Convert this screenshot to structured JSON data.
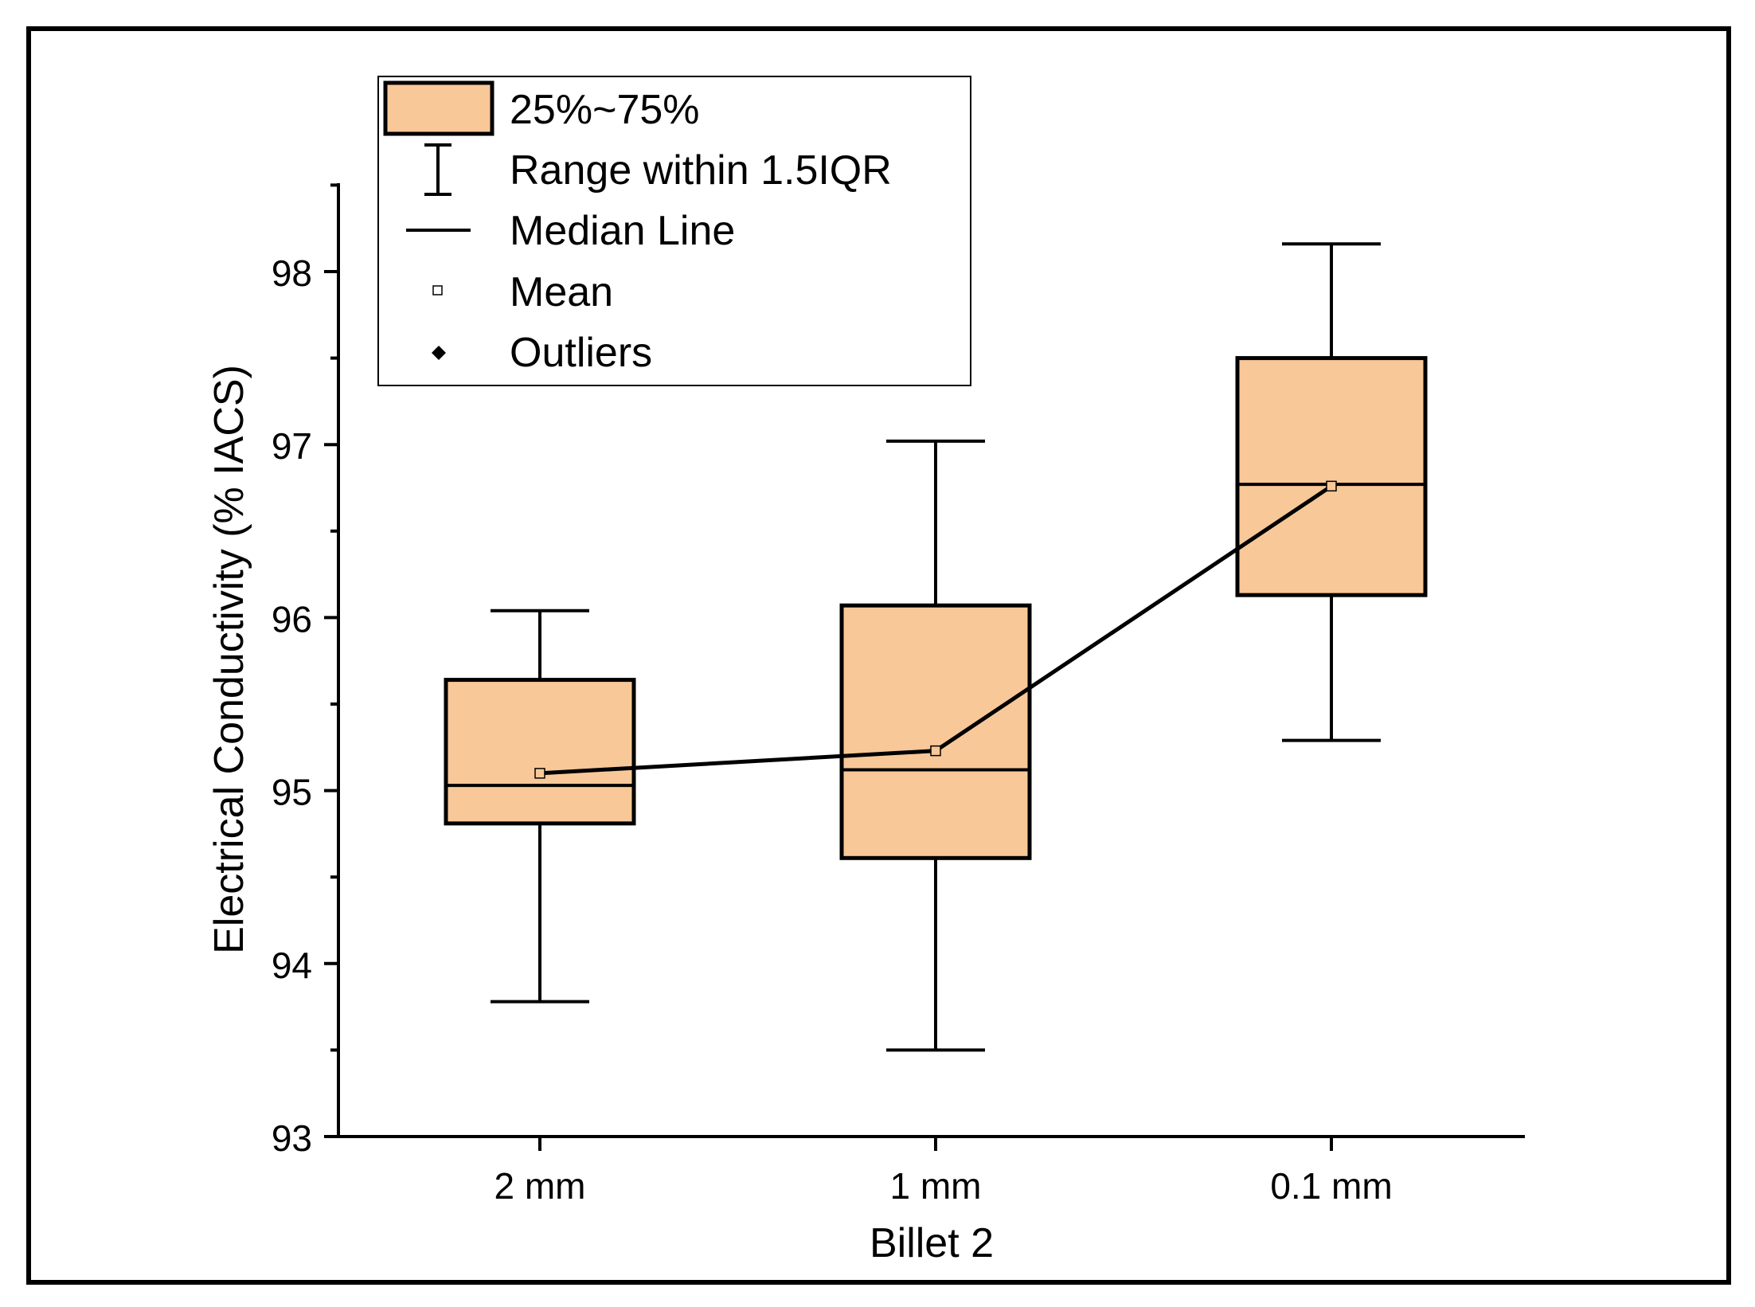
{
  "chart_data": {
    "type": "box",
    "title": "",
    "xlabel": "Billet 2",
    "ylabel": "Electrical Conductivity (% IACS)",
    "ylim": [
      93,
      98.5
    ],
    "yticks": [
      93,
      94,
      95,
      96,
      97,
      98
    ],
    "ytick_labels": [
      "93",
      "94",
      "95",
      "96",
      "97",
      "98"
    ],
    "categories": [
      "2 mm",
      "1 mm",
      "0.1 mm"
    ],
    "boxes": [
      {
        "category": "2 mm",
        "whisker_low": 93.78,
        "q1": 94.81,
        "median": 95.03,
        "q3": 95.64,
        "whisker_high": 96.04,
        "mean": 95.1
      },
      {
        "category": "1 mm",
        "whisker_low": 93.5,
        "q1": 94.61,
        "median": 95.12,
        "q3": 96.07,
        "whisker_high": 97.02,
        "mean": 95.23
      },
      {
        "category": "0.1 mm",
        "whisker_low": 95.29,
        "q1": 96.13,
        "median": 96.77,
        "q3": 97.5,
        "whisker_high": 98.16,
        "mean": 96.76
      }
    ],
    "mean_line": true,
    "legend": {
      "position": "top-left",
      "entries": [
        "25%~75%",
        "Range within 1.5IQR",
        "Median Line",
        "Mean",
        "Outliers"
      ]
    },
    "colors": {
      "box_fill": "#F9C898",
      "stroke": "#000000",
      "mean_marker_fill": "#F9C898"
    }
  }
}
